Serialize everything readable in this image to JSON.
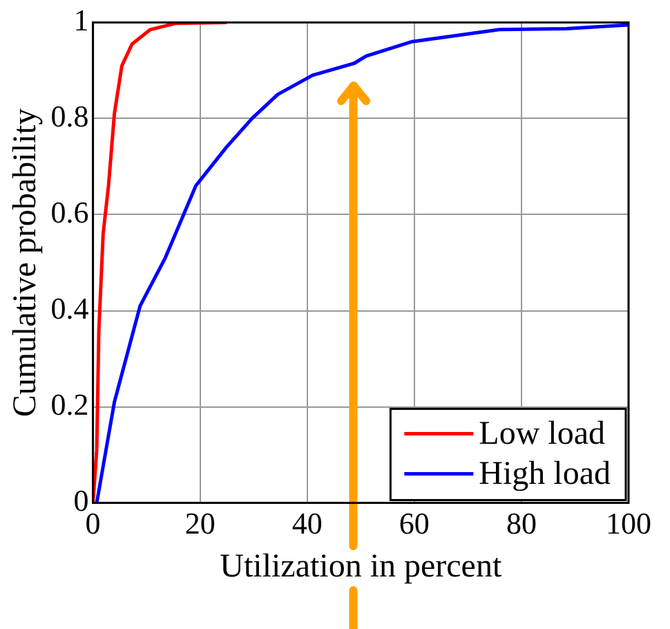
{
  "chart_data": {
    "type": "line",
    "xlabel": "Utilization in percent",
    "ylabel": "Cumulative probability",
    "xlim": [
      0,
      100
    ],
    "xticks": [
      0,
      20,
      40,
      60,
      80,
      100
    ],
    "ylim": [
      0,
      1
    ],
    "yticks": [
      0,
      0.2,
      0.4,
      0.6,
      0.8,
      1
    ],
    "grid": true,
    "legend": "bottom right",
    "ref_lines": [
      {
        "axis": "x",
        "value": 48.6,
        "color": "#ffa000"
      }
    ],
    "marker": "none",
    "line_style": "solid",
    "series": [
      {
        "name": "Low load",
        "color": "#ff0000",
        "x": [
          0,
          0.7,
          1.1,
          1.9,
          2.9,
          4,
          5.4,
          7.3,
          10.7,
          15.4,
          25
        ],
        "values": [
          0,
          0.11,
          0.36,
          0.56,
          0.66,
          0.81,
          0.91,
          0.955,
          0.985,
          0.998,
          1
        ]
      },
      {
        "name": "High load",
        "color": "#0000ff",
        "x": [
          0.7,
          4,
          8.8,
          13.5,
          19.2,
          24.9,
          29.7,
          34.5,
          41,
          48.8,
          51,
          59.6,
          75.9,
          88.4,
          100
        ],
        "values": [
          0,
          0.21,
          0.41,
          0.51,
          0.66,
          0.74,
          0.8,
          0.85,
          0.89,
          0.915,
          0.93,
          0.96,
          0.985,
          0.987,
          0.995
        ]
      }
    ]
  }
}
